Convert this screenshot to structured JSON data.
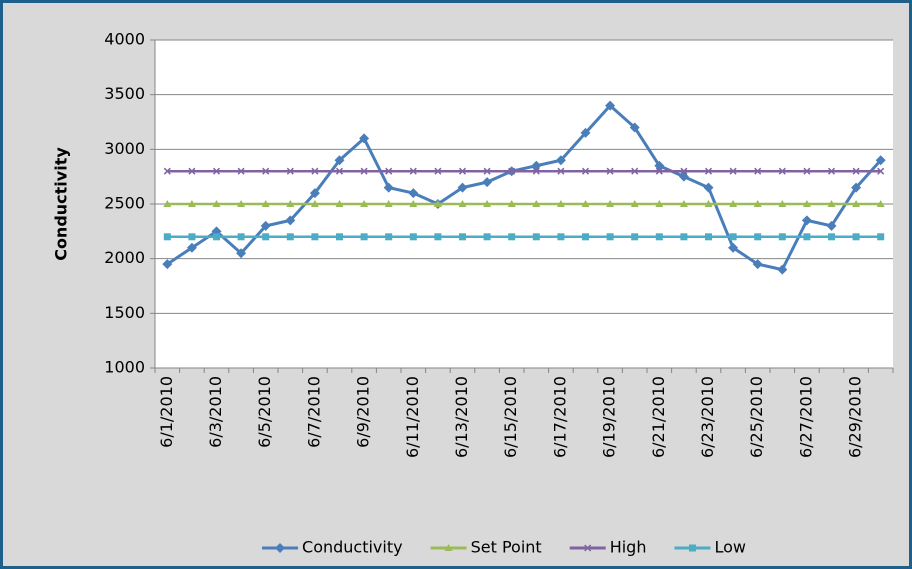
{
  "chart_data": {
    "type": "line",
    "y_label": "Conductivity",
    "categories": [
      "6/1/2010",
      null,
      "6/3/2010",
      null,
      "6/5/2010",
      null,
      "6/7/2010",
      null,
      "6/9/2010",
      null,
      "6/11/2010",
      null,
      "6/13/2010",
      null,
      "6/15/2010",
      null,
      "6/17/2010",
      null,
      "6/19/2010",
      null,
      "6/21/2010",
      null,
      "6/23/2010",
      null,
      "6/25/2010",
      null,
      "6/27/2010",
      null,
      "6/29/2010",
      null
    ],
    "series": [
      {
        "name": "Conductivity",
        "color": "#4a7ebb",
        "marker": "diamond",
        "values": [
          1950,
          2100,
          2250,
          2050,
          2300,
          2350,
          2600,
          2900,
          3100,
          2650,
          2600,
          2500,
          2650,
          2700,
          2800,
          2850,
          2900,
          3150,
          3400,
          3200,
          2850,
          2750,
          2650,
          2100,
          1950,
          1900,
          2350,
          2300,
          2650,
          2900
        ]
      },
      {
        "name": "Set Point",
        "color": "#9bbb59",
        "marker": "triangle",
        "values": [
          2500,
          2500,
          2500,
          2500,
          2500,
          2500,
          2500,
          2500,
          2500,
          2500,
          2500,
          2500,
          2500,
          2500,
          2500,
          2500,
          2500,
          2500,
          2500,
          2500,
          2500,
          2500,
          2500,
          2500,
          2500,
          2500,
          2500,
          2500,
          2500,
          2500
        ]
      },
      {
        "name": "High",
        "color": "#8064a2",
        "marker": "x",
        "values": [
          2800,
          2800,
          2800,
          2800,
          2800,
          2800,
          2800,
          2800,
          2800,
          2800,
          2800,
          2800,
          2800,
          2800,
          2800,
          2800,
          2800,
          2800,
          2800,
          2800,
          2800,
          2800,
          2800,
          2800,
          2800,
          2800,
          2800,
          2800,
          2800,
          2800
        ]
      },
      {
        "name": "Low",
        "color": "#4bacc6",
        "marker": "square",
        "values": [
          2200,
          2200,
          2200,
          2200,
          2200,
          2200,
          2200,
          2200,
          2200,
          2200,
          2200,
          2200,
          2200,
          2200,
          2200,
          2200,
          2200,
          2200,
          2200,
          2200,
          2200,
          2200,
          2200,
          2200,
          2200,
          2200,
          2200,
          2200,
          2200,
          2200
        ]
      }
    ],
    "ylim": [
      1000,
      4000
    ],
    "yticks": [
      1000,
      1500,
      2000,
      2500,
      3000,
      3500,
      4000
    ],
    "grid": true,
    "legend": "bottom"
  }
}
